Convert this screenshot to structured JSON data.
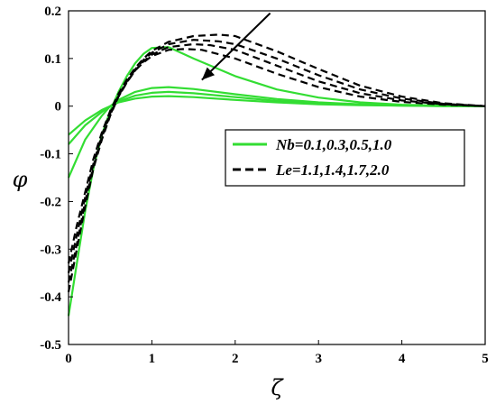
{
  "chart_data": {
    "type": "line",
    "xlabel": "ζ",
    "ylabel": "φ",
    "xlim": [
      0,
      5
    ],
    "ylim": [
      -0.5,
      0.2
    ],
    "xticks": [
      "0",
      "1",
      "2",
      "3",
      "4",
      "5"
    ],
    "yticks": [
      "-0.5",
      "-0.4",
      "-0.3",
      "-0.2",
      "-0.1",
      "0",
      "0.1",
      "0.2"
    ],
    "grid": false,
    "legend": {
      "placement": "center-right",
      "entries": [
        {
          "label": "Nb=0.1,0.3,0.5,1.0",
          "color": "#33dd33",
          "style": "solid"
        },
        {
          "label": "Le=1.1,1.4,1.7,2.0",
          "color": "#000000",
          "style": "dashed"
        }
      ]
    },
    "annotation": {
      "type": "arrow",
      "from": [
        2.42,
        0.195
      ],
      "to": [
        1.6,
        0.055
      ]
    },
    "series": [
      {
        "group": "Nb",
        "color": "#33dd33",
        "style": "solid",
        "x": [
          0,
          0.1,
          0.2,
          0.3,
          0.4,
          0.5,
          0.6,
          0.7,
          0.8,
          0.9,
          1.0,
          1.2,
          1.5,
          2.0,
          2.5,
          3.0,
          3.5,
          4.0,
          4.5,
          5.0
        ],
        "values": [
          -0.44,
          -0.33,
          -0.22,
          -0.13,
          -0.06,
          -0.01,
          0.03,
          0.063,
          0.09,
          0.11,
          0.122,
          0.124,
          0.1,
          0.063,
          0.035,
          0.018,
          0.008,
          0.003,
          0.001,
          0
        ]
      },
      {
        "group": "Nb",
        "color": "#33dd33",
        "style": "solid",
        "x": [
          0,
          0.2,
          0.4,
          0.5,
          0.6,
          0.8,
          1.0,
          1.2,
          1.5,
          2.0,
          2.5,
          3.0,
          3.5,
          4.0,
          4.5,
          5.0
        ],
        "values": [
          -0.15,
          -0.07,
          -0.02,
          0.0,
          0.013,
          0.03,
          0.038,
          0.04,
          0.036,
          0.025,
          0.015,
          0.008,
          0.004,
          0.002,
          0.0005,
          0
        ]
      },
      {
        "group": "Nb",
        "color": "#33dd33",
        "style": "solid",
        "x": [
          0,
          0.2,
          0.4,
          0.5,
          0.6,
          0.8,
          1.0,
          1.2,
          1.5,
          2.0,
          2.5,
          3.0,
          3.5,
          4.0,
          4.5,
          5.0
        ],
        "values": [
          -0.08,
          -0.04,
          -0.012,
          0.0,
          0.01,
          0.022,
          0.028,
          0.03,
          0.027,
          0.019,
          0.011,
          0.006,
          0.003,
          0.001,
          0.0003,
          0
        ]
      },
      {
        "group": "Nb",
        "color": "#33dd33",
        "style": "solid",
        "x": [
          0,
          0.2,
          0.4,
          0.5,
          0.6,
          0.8,
          1.0,
          1.2,
          1.5,
          2.0,
          2.5,
          3.0,
          3.5,
          4.0,
          4.5,
          5.0
        ],
        "values": [
          -0.06,
          -0.03,
          -0.008,
          0.0,
          0.008,
          0.016,
          0.02,
          0.021,
          0.019,
          0.013,
          0.008,
          0.004,
          0.002,
          0.001,
          0.0002,
          0
        ]
      },
      {
        "group": "Le",
        "color": "#000000",
        "style": "dashed",
        "x": [
          0,
          0.1,
          0.2,
          0.3,
          0.4,
          0.5,
          0.6,
          0.7,
          0.8,
          0.9,
          1.0,
          1.2,
          1.4,
          1.6,
          2.0,
          2.5,
          3.0,
          3.5,
          4.0,
          4.5,
          5.0
        ],
        "values": [
          -0.39,
          -0.3,
          -0.21,
          -0.13,
          -0.07,
          -0.02,
          0.02,
          0.05,
          0.075,
          0.092,
          0.105,
          0.118,
          0.12,
          0.118,
          0.1,
          0.068,
          0.04,
          0.02,
          0.009,
          0.003,
          0
        ]
      },
      {
        "group": "Le",
        "color": "#000000",
        "style": "dashed",
        "x": [
          0,
          0.1,
          0.2,
          0.3,
          0.4,
          0.5,
          0.6,
          0.7,
          0.8,
          0.9,
          1.0,
          1.2,
          1.5,
          1.7,
          2.0,
          2.5,
          3.0,
          3.5,
          4.0,
          4.5,
          5.0
        ],
        "values": [
          -0.37,
          -0.29,
          -0.2,
          -0.125,
          -0.065,
          -0.018,
          0.02,
          0.05,
          0.075,
          0.094,
          0.108,
          0.124,
          0.13,
          0.128,
          0.118,
          0.085,
          0.052,
          0.027,
          0.012,
          0.004,
          0
        ]
      },
      {
        "group": "Le",
        "color": "#000000",
        "style": "dashed",
        "x": [
          0,
          0.1,
          0.2,
          0.3,
          0.4,
          0.5,
          0.6,
          0.7,
          0.8,
          0.9,
          1.0,
          1.2,
          1.5,
          1.8,
          2.0,
          2.5,
          3.0,
          3.5,
          4.0,
          4.5,
          5.0
        ],
        "values": [
          -0.35,
          -0.27,
          -0.19,
          -0.12,
          -0.06,
          -0.015,
          0.022,
          0.052,
          0.077,
          0.097,
          0.112,
          0.13,
          0.139,
          0.136,
          0.13,
          0.1,
          0.065,
          0.035,
          0.016,
          0.005,
          0
        ]
      },
      {
        "group": "Le",
        "color": "#000000",
        "style": "dashed",
        "x": [
          0,
          0.1,
          0.2,
          0.3,
          0.4,
          0.5,
          0.6,
          0.7,
          0.8,
          0.9,
          1.0,
          1.2,
          1.5,
          1.8,
          2.0,
          2.5,
          3.0,
          3.5,
          4.0,
          4.5,
          5.0
        ],
        "values": [
          -0.33,
          -0.25,
          -0.18,
          -0.11,
          -0.055,
          -0.01,
          0.026,
          0.056,
          0.08,
          0.1,
          0.116,
          0.135,
          0.147,
          0.15,
          0.147,
          0.115,
          0.078,
          0.043,
          0.02,
          0.006,
          0
        ]
      }
    ]
  }
}
